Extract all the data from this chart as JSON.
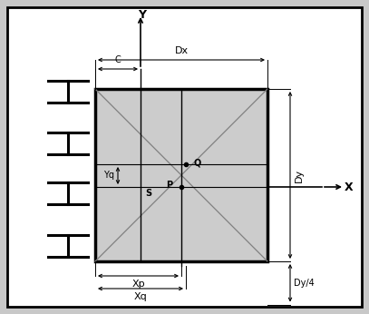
{
  "fig_width": 4.07,
  "fig_height": 3.46,
  "dpi": 100,
  "bg_color": "#c8c8c8",
  "outer_rect_facecolor": "#ffffff",
  "inner_rect_fill": "#cccccc",
  "inner_rect_edge": "#000000",
  "C_label": "C",
  "Dx_label": "Dx",
  "Dy_label": "Dy",
  "Dy4_label": "Dy/4",
  "Yq_label": "Yq",
  "S_label": "S",
  "Xp_label": "Xp",
  "Xq_label": "Xq",
  "P_label": "P",
  "Q_label": "Q",
  "X_label": "X",
  "Y_label": "Y",
  "xlim": [
    0,
    407
  ],
  "ylim": [
    0,
    346
  ]
}
